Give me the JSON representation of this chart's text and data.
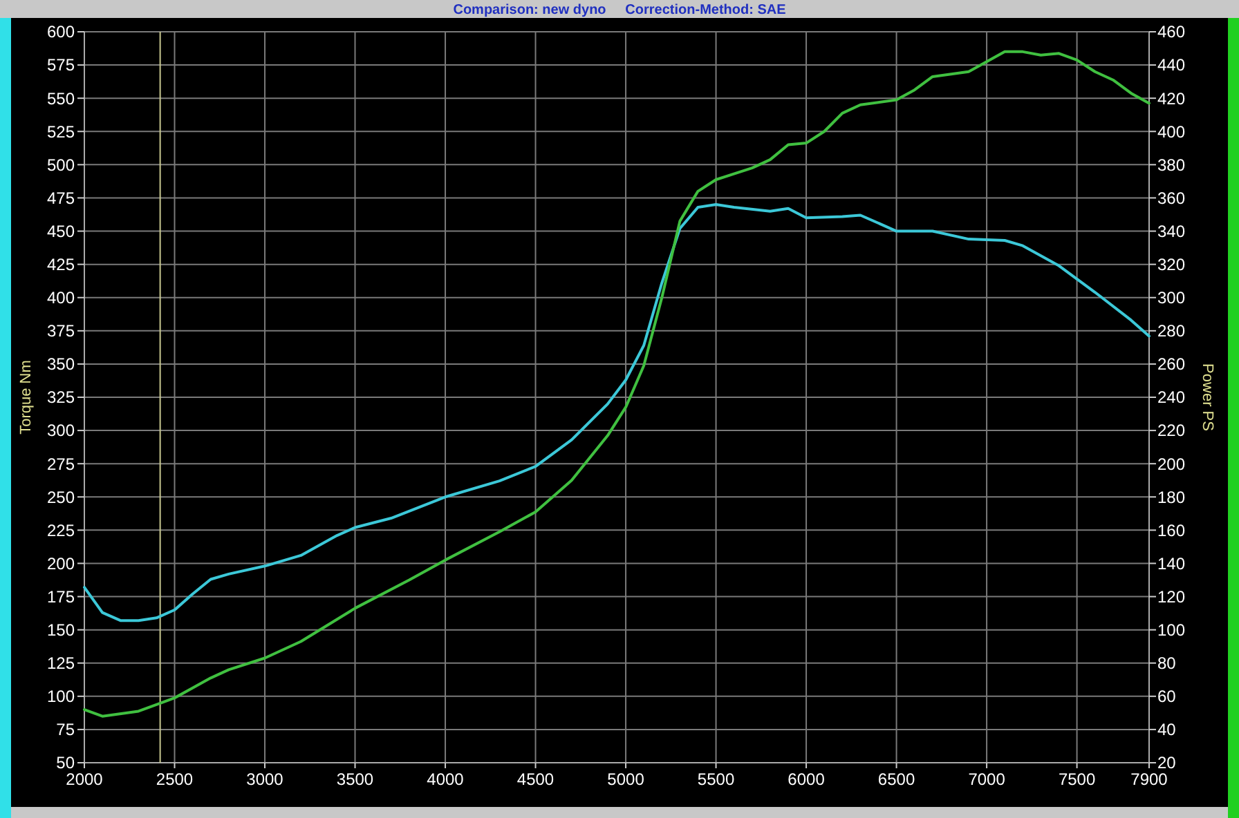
{
  "chart_data": {
    "type": "line",
    "title": "Comparison: new dyno     Correction-Method: SAE",
    "ylabel": "Torque Nm",
    "y2label": "Power PS",
    "xlim": [
      2000,
      7900
    ],
    "xticks": [
      2000,
      2500,
      3000,
      3500,
      4000,
      4500,
      5000,
      5500,
      6000,
      6500,
      7000,
      7500,
      7900
    ],
    "ylim": [
      50,
      600
    ],
    "yticks": [
      50,
      75,
      100,
      125,
      150,
      175,
      200,
      225,
      250,
      275,
      300,
      325,
      350,
      375,
      400,
      425,
      450,
      475,
      500,
      525,
      550,
      575,
      600
    ],
    "y2lim": [
      20,
      460
    ],
    "y2ticks": [
      20,
      40,
      60,
      80,
      100,
      120,
      140,
      160,
      180,
      200,
      220,
      240,
      260,
      280,
      300,
      320,
      340,
      360,
      380,
      400,
      420,
      440,
      460
    ],
    "grid": true,
    "marker": "none",
    "line_style": "solid",
    "ref_lines": [
      {
        "axis": "x",
        "value": 2420,
        "label": null,
        "color": "#c8c890"
      }
    ],
    "series": [
      {
        "color": "#3cc8d8",
        "x": [
          2000,
          2100,
          2200,
          2300,
          2400,
          2500,
          2600,
          2700,
          2800,
          3000,
          3200,
          3400,
          3500,
          3700,
          4000,
          4300,
          4500,
          4700,
          4900,
          5000,
          5100,
          5200,
          5300,
          5400,
          5500,
          5600,
          5800,
          5900,
          6000,
          6200,
          6300,
          6500,
          6700,
          6900,
          7100,
          7200,
          7400,
          7600,
          7800,
          7900
        ],
        "values": [
          182,
          163,
          157,
          157,
          159,
          165,
          177,
          188,
          192,
          198,
          206,
          221,
          227,
          234,
          250,
          262,
          273,
          293,
          320,
          338,
          364,
          411,
          452,
          468,
          470,
          468,
          465,
          467,
          460,
          461,
          462,
          450,
          450,
          444,
          443,
          439,
          424,
          404,
          383,
          371
        ]
      },
      {
        "color": "#40c040",
        "axis": "y2",
        "x": [
          2000,
          2100,
          2300,
          2500,
          2600,
          2700,
          2800,
          3000,
          3200,
          3500,
          3800,
          4000,
          4300,
          4500,
          4700,
          4900,
          5000,
          5100,
          5200,
          5300,
          5400,
          5500,
          5700,
          5800,
          5900,
          6000,
          6100,
          6200,
          6300,
          6500,
          6600,
          6700,
          6900,
          7000,
          7100,
          7200,
          7300,
          7400,
          7500,
          7600,
          7700,
          7800,
          7900
        ],
        "values": [
          52,
          48,
          51,
          59,
          65,
          71,
          76,
          83,
          93,
          113,
          130,
          142,
          159,
          171,
          190,
          217,
          234,
          259,
          300,
          346,
          364,
          371,
          378,
          383,
          392,
          393,
          400,
          411,
          416,
          419,
          425,
          433,
          436,
          442,
          448,
          448,
          446,
          447,
          443,
          436,
          431,
          423,
          417
        ]
      }
    ]
  }
}
